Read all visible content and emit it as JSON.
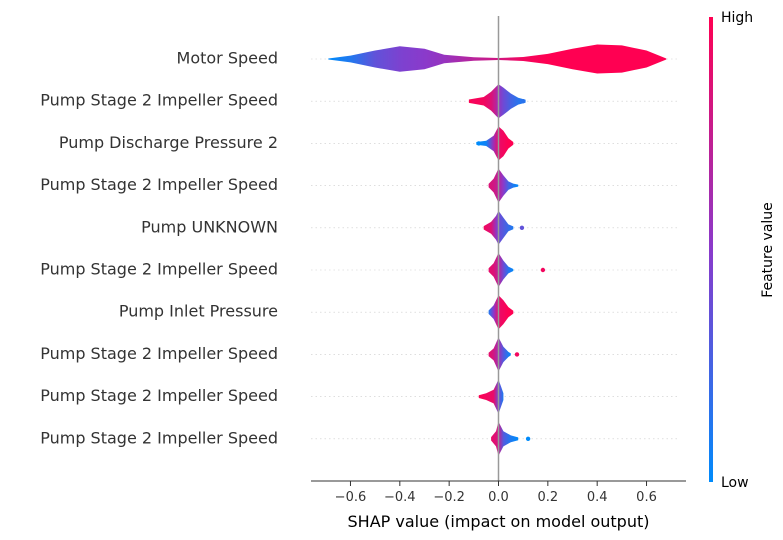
{
  "chart_data": {
    "type": "violin",
    "xlabel": "SHAP value (impact on model output)",
    "xlim": [
      -0.76,
      0.76
    ],
    "xticks": [
      -0.6,
      -0.4,
      -0.2,
      0.0,
      0.2,
      0.4,
      0.6
    ],
    "xtick_labels": [
      "−0.6",
      "−0.4",
      "−0.2",
      "0.0",
      "0.2",
      "0.4",
      "0.6"
    ],
    "zero_line": true,
    "grid": false,
    "colorbar": {
      "label": "Feature value",
      "high_label": "High",
      "low_label": "Low",
      "low_color": "#008bfb",
      "mid_color": "#8a3acb",
      "high_color": "#ff0052"
    },
    "features": [
      {
        "name": "Motor Speed",
        "range": [
          -0.69,
          0.68
        ],
        "profile": [
          [
            -0.69,
            0.03,
            0.0
          ],
          [
            -0.6,
            0.2,
            0.12
          ],
          [
            -0.5,
            0.5,
            0.35
          ],
          [
            -0.4,
            0.75,
            0.45
          ],
          [
            -0.3,
            0.6,
            0.5
          ],
          [
            -0.22,
            0.25,
            0.55
          ],
          [
            -0.1,
            0.1,
            0.7
          ],
          [
            0.0,
            0.06,
            0.8
          ],
          [
            0.1,
            0.12,
            0.95
          ],
          [
            0.2,
            0.3,
            1.0
          ],
          [
            0.3,
            0.6,
            1.0
          ],
          [
            0.4,
            0.85,
            1.0
          ],
          [
            0.5,
            0.8,
            1.0
          ],
          [
            0.6,
            0.5,
            1.0
          ],
          [
            0.68,
            0.03,
            1.0
          ]
        ],
        "outliers": []
      },
      {
        "name": "Pump Stage 2 Impeller Speed",
        "range": [
          -0.12,
          0.11
        ],
        "profile": [
          [
            -0.12,
            0.1,
            1.0
          ],
          [
            -0.06,
            0.25,
            0.95
          ],
          [
            -0.03,
            0.55,
            0.85
          ],
          [
            -0.01,
            0.85,
            0.7
          ],
          [
            0.0,
            1.0,
            0.55
          ],
          [
            0.02,
            0.8,
            0.4
          ],
          [
            0.05,
            0.45,
            0.25
          ],
          [
            0.08,
            0.2,
            0.15
          ],
          [
            0.11,
            0.08,
            0.1
          ]
        ],
        "outliers": [
          [
            -0.1,
            0.95
          ],
          [
            0.1,
            0.15
          ]
        ]
      },
      {
        "name": "Pump Discharge Pressure 2",
        "range": [
          -0.09,
          0.06
        ],
        "profile": [
          [
            -0.09,
            0.08,
            0.0
          ],
          [
            -0.05,
            0.15,
            0.05
          ],
          [
            -0.02,
            0.45,
            0.6
          ],
          [
            0.0,
            1.0,
            0.9
          ],
          [
            0.02,
            0.75,
            0.95
          ],
          [
            0.04,
            0.3,
            1.0
          ],
          [
            0.06,
            0.08,
            1.0
          ]
        ],
        "outliers": [
          [
            -0.08,
            0.0
          ]
        ]
      },
      {
        "name": "Pump Stage 2 Impeller Speed",
        "range": [
          -0.04,
          0.08
        ],
        "profile": [
          [
            -0.04,
            0.1,
            0.85
          ],
          [
            -0.02,
            0.4,
            0.8
          ],
          [
            0.0,
            1.0,
            0.7
          ],
          [
            0.02,
            0.6,
            0.5
          ],
          [
            0.04,
            0.25,
            0.25
          ],
          [
            0.06,
            0.12,
            0.1
          ],
          [
            0.08,
            0.06,
            0.0
          ]
        ],
        "outliers": []
      },
      {
        "name": "Pump UNKNOWN",
        "range": [
          -0.06,
          0.06
        ],
        "profile": [
          [
            -0.06,
            0.1,
            0.95
          ],
          [
            -0.03,
            0.35,
            0.85
          ],
          [
            -0.01,
            0.7,
            0.55
          ],
          [
            0.0,
            1.0,
            0.4
          ],
          [
            0.02,
            0.6,
            0.3
          ],
          [
            0.04,
            0.2,
            0.2
          ],
          [
            0.06,
            0.08,
            0.1
          ]
        ],
        "outliers": [
          [
            0.095,
            0.35
          ]
        ]
      },
      {
        "name": "Pump Stage 2 Impeller Speed",
        "range": [
          -0.04,
          0.06
        ],
        "profile": [
          [
            -0.04,
            0.1,
            0.9
          ],
          [
            -0.02,
            0.4,
            0.85
          ],
          [
            0.0,
            1.0,
            0.7
          ],
          [
            0.02,
            0.55,
            0.4
          ],
          [
            0.04,
            0.2,
            0.15
          ],
          [
            0.06,
            0.06,
            0.0
          ]
        ],
        "outliers": [
          [
            0.18,
            0.95
          ]
        ]
      },
      {
        "name": "Pump Inlet Pressure",
        "range": [
          -0.04,
          0.06
        ],
        "profile": [
          [
            -0.04,
            0.1,
            0.1
          ],
          [
            -0.02,
            0.4,
            0.5
          ],
          [
            0.0,
            1.0,
            0.9
          ],
          [
            0.02,
            0.7,
            0.95
          ],
          [
            0.04,
            0.3,
            1.0
          ],
          [
            0.06,
            0.08,
            1.0
          ]
        ],
        "outliers": []
      },
      {
        "name": "Pump Stage 2 Impeller Speed",
        "range": [
          -0.04,
          0.05
        ],
        "profile": [
          [
            -0.04,
            0.1,
            0.9
          ],
          [
            -0.02,
            0.35,
            0.8
          ],
          [
            0.0,
            1.0,
            0.6
          ],
          [
            0.02,
            0.45,
            0.3
          ],
          [
            0.04,
            0.15,
            0.1
          ],
          [
            0.05,
            0.06,
            0.0
          ]
        ],
        "outliers": [
          [
            0.075,
            0.95
          ]
        ]
      },
      {
        "name": "Pump Stage 2 Impeller Speed",
        "range": [
          -0.08,
          0.02
        ],
        "profile": [
          [
            -0.08,
            0.08,
            1.0
          ],
          [
            -0.05,
            0.2,
            0.95
          ],
          [
            -0.02,
            0.4,
            0.9
          ],
          [
            0.0,
            1.0,
            0.4
          ],
          [
            0.01,
            0.6,
            0.25
          ],
          [
            0.02,
            0.2,
            0.1
          ]
        ],
        "outliers": []
      },
      {
        "name": "Pump Stage 2 Impeller Speed",
        "range": [
          -0.03,
          0.08
        ],
        "profile": [
          [
            -0.03,
            0.1,
            0.9
          ],
          [
            -0.01,
            0.45,
            0.85
          ],
          [
            0.0,
            1.0,
            0.75
          ],
          [
            0.02,
            0.45,
            0.3
          ],
          [
            0.05,
            0.2,
            0.1
          ],
          [
            0.08,
            0.08,
            0.0
          ]
        ],
        "outliers": [
          [
            0.12,
            0.0
          ]
        ]
      }
    ]
  }
}
